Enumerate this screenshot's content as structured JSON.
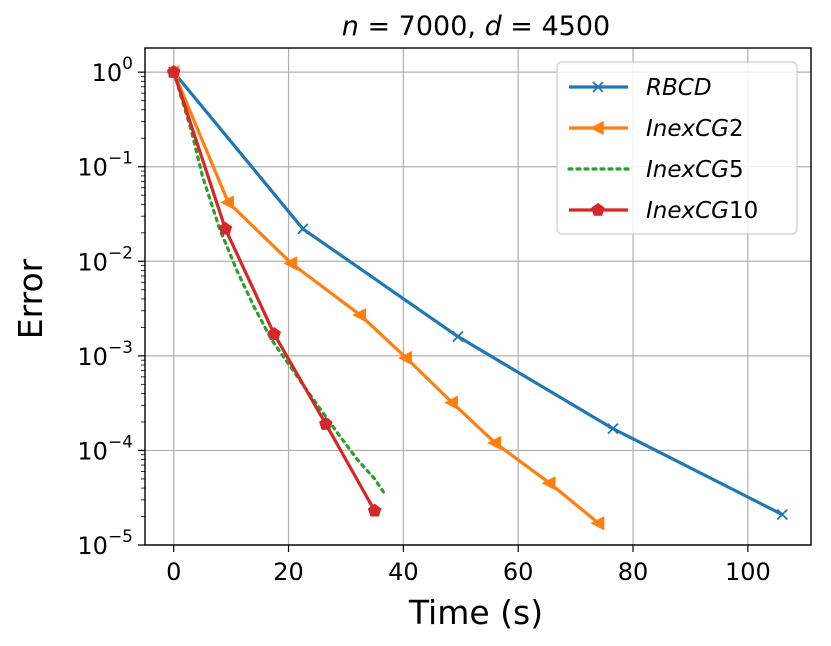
{
  "chart_data": {
    "type": "line",
    "title": "n = 7000, d = 4500",
    "title_parts": {
      "n_var": "n",
      "n_val": " = 7000, ",
      "d_var": "d",
      "d_val": " = 4500"
    },
    "xlabel": "Time (s)",
    "ylabel": "Error",
    "xscale": "linear",
    "yscale": "log",
    "xlim": [
      -5,
      111
    ],
    "ylim": [
      1e-05,
      1.8
    ],
    "xticks": [
      0,
      20,
      40,
      60,
      80,
      100
    ],
    "yticks": [
      {
        "value": 1,
        "base": "10",
        "exp": "0"
      },
      {
        "value": 0.1,
        "base": "10",
        "exp": "−1"
      },
      {
        "value": 0.01,
        "base": "10",
        "exp": "−2"
      },
      {
        "value": 0.001,
        "base": "10",
        "exp": "−3"
      },
      {
        "value": 0.0001,
        "base": "10",
        "exp": "−4"
      },
      {
        "value": 1e-05,
        "base": "10",
        "exp": "−5"
      }
    ],
    "grid": true,
    "legend_position": "top-right",
    "series": [
      {
        "name": "RBCD",
        "label_text": "RBCD",
        "label_num": "",
        "color": "#1f77b4",
        "marker": "x",
        "linestyle": "solid",
        "x": [
          0,
          22.5,
          49.5,
          76.5,
          106
        ],
        "y": [
          1.0,
          0.022,
          0.0016,
          0.00017,
          2.1e-05
        ]
      },
      {
        "name": "InexCG2",
        "label_text": "InexCG",
        "label_num": "2",
        "color": "#ff7f0e",
        "marker": "triangle-left",
        "linestyle": "solid",
        "x": [
          0,
          9.5,
          20.5,
          32.5,
          40.5,
          48.5,
          56,
          65.5,
          74
        ],
        "y": [
          1.0,
          0.042,
          0.0095,
          0.0027,
          0.00095,
          0.00032,
          0.00012,
          4.5e-05,
          1.7e-05
        ]
      },
      {
        "name": "InexCG5",
        "label_text": "InexCG",
        "label_num": "5",
        "color": "#2ca02c",
        "marker": "none",
        "linestyle": "dotted",
        "x": [
          0,
          3,
          5,
          8,
          11,
          14,
          17,
          20,
          23,
          26,
          29,
          32,
          35,
          37
        ],
        "y": [
          1.0,
          0.25,
          0.08,
          0.022,
          0.008,
          0.0033,
          0.0015,
          0.00082,
          0.00045,
          0.00025,
          0.00014,
          8e-05,
          5e-05,
          3.3e-05
        ]
      },
      {
        "name": "InexCG10",
        "label_text": "InexCG",
        "label_num": "10",
        "color": "#d62728",
        "marker": "pentagon",
        "linestyle": "solid",
        "x": [
          0,
          9,
          17.5,
          26.5,
          35
        ],
        "y": [
          1.0,
          0.022,
          0.0017,
          0.00019,
          2.3e-05
        ]
      }
    ]
  }
}
